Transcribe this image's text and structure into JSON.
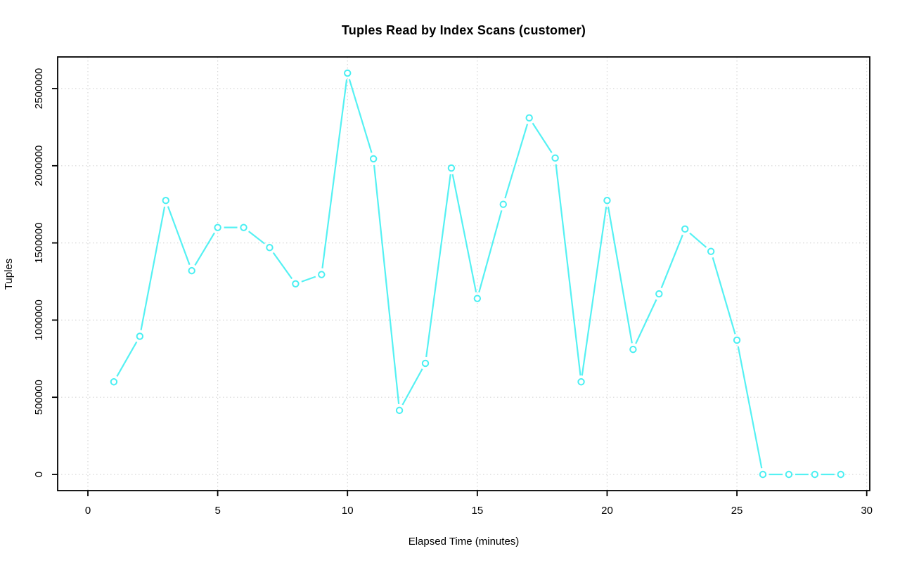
{
  "title": "Tuples Read by Index Scans (customer)",
  "x_axis": {
    "label": "Elapsed Time (minutes)",
    "ticks": [
      0,
      5,
      10,
      15,
      20,
      25,
      30
    ]
  },
  "y_axis": {
    "label": "Tuples",
    "ticks": [
      0,
      500000,
      1000000,
      1500000,
      2000000,
      2500000
    ]
  },
  "colors": {
    "line": "#55F1F3",
    "marker": "#4AEFF2",
    "marker_fill": "#FFFFFF",
    "grid": "#D6D6D6",
    "axis": "#000000",
    "background": "#FFFFFF"
  },
  "chart_data": {
    "type": "line",
    "title": "Tuples Read by Index Scans (customer)",
    "xlabel": "Elapsed Time (minutes)",
    "ylabel": "Tuples",
    "x": [
      1,
      2,
      3,
      4,
      5,
      6,
      7,
      8,
      9,
      10,
      11,
      12,
      13,
      14,
      15,
      16,
      17,
      18,
      19,
      20,
      21,
      22,
      23,
      24,
      25,
      26,
      27,
      28,
      29
    ],
    "values": [
      600000,
      895000,
      1775000,
      1320000,
      1600000,
      1600000,
      1470000,
      1235000,
      1295000,
      2600000,
      2045000,
      415000,
      720000,
      1985000,
      1140000,
      1750000,
      2310000,
      2050000,
      600000,
      1775000,
      810000,
      1170000,
      1590000,
      1445000,
      870000,
      0,
      0,
      0,
      0
    ],
    "xlim": [
      0,
      30
    ],
    "ylim": [
      0,
      2600000
    ],
    "x_ticks": [
      0,
      5,
      10,
      15,
      20,
      25,
      30
    ],
    "y_ticks": [
      0,
      500000,
      1000000,
      1500000,
      2000000,
      2500000
    ],
    "grid": "dotted",
    "legend": "none",
    "marker": "open-circle",
    "line_style": "segments-with-point-gaps (R type='b')"
  }
}
